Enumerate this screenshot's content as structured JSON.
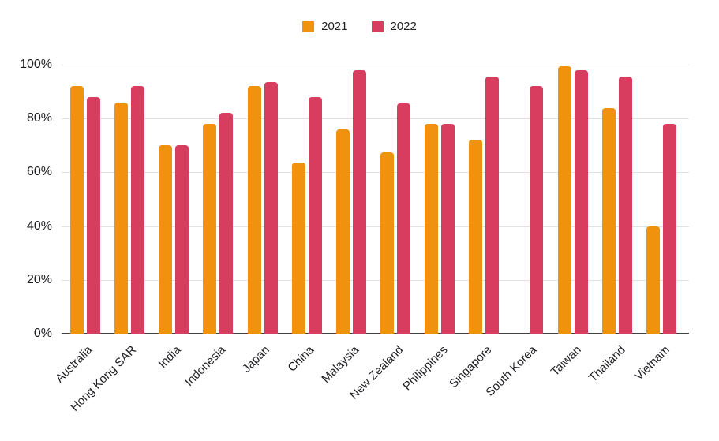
{
  "chart_data": {
    "type": "bar",
    "title": "",
    "xlabel": "",
    "ylabel": "",
    "categories": [
      "Australia",
      "Hong Kong SAR",
      "India",
      "Indonesia",
      "Japan",
      "China",
      "Malaysia",
      "New Zealand",
      "Philippines",
      "Singapore",
      "South Korea",
      "Taiwan",
      "Thailand",
      "Vietnam"
    ],
    "series": [
      {
        "name": "2021",
        "color": "#F0920D",
        "values": [
          92,
          86,
          70,
          78,
          92,
          63.5,
          76,
          67.5,
          78,
          72,
          null,
          99.5,
          84,
          40
        ]
      },
      {
        "name": "2022",
        "color": "#D83C5E",
        "values": [
          88,
          92,
          70,
          82,
          93.5,
          88,
          98,
          85.5,
          78,
          95.5,
          92,
          98,
          95.5,
          78
        ]
      }
    ],
    "y_ticks": [
      "100%",
      "80%",
      "60%",
      "40%",
      "20%",
      "0%"
    ],
    "ylim": [
      0,
      100
    ],
    "unit": "%",
    "grid": true,
    "legend_position": "top-center",
    "x_label_rotation_deg": -45
  },
  "colors": {
    "series_2021": "#F0920D",
    "series_2022": "#D83C5E",
    "gridline": "#e2e2e2",
    "axis_baseline": "#424242",
    "text": "#202124",
    "background": "#ffffff"
  }
}
